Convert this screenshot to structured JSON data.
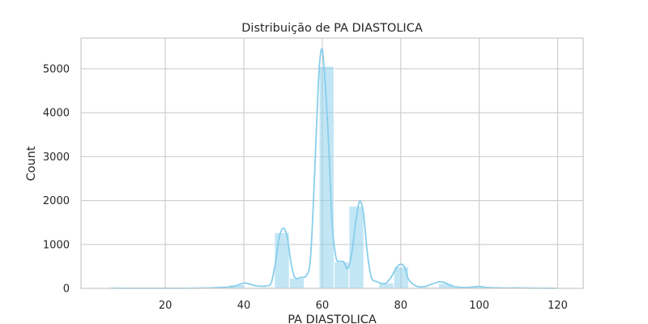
{
  "chart_data": {
    "type": "bar",
    "title": "Distribuição de PA DIASTOLICA",
    "xlabel": "PA DIASTOLICA",
    "ylabel": "Count",
    "xlim": [
      -1.5,
      126.5
    ],
    "ylim": [
      0,
      5700
    ],
    "xticks": [
      20,
      40,
      60,
      80,
      100,
      120
    ],
    "yticks": [
      0,
      1000,
      2000,
      3000,
      4000,
      5000
    ],
    "grid": true,
    "color": "#87ceeb",
    "bins": [
      {
        "x0": 6.0,
        "x1": 9.8,
        "count": 8
      },
      {
        "x0": 9.8,
        "x1": 13.6,
        "count": 3
      },
      {
        "x0": 13.6,
        "x1": 17.4,
        "count": 3
      },
      {
        "x0": 17.4,
        "x1": 21.2,
        "count": 5
      },
      {
        "x0": 21.2,
        "x1": 25.0,
        "count": 3
      },
      {
        "x0": 25.0,
        "x1": 28.8,
        "count": 3
      },
      {
        "x0": 28.8,
        "x1": 32.6,
        "count": 6
      },
      {
        "x0": 32.6,
        "x1": 36.4,
        "count": 10
      },
      {
        "x0": 36.4,
        "x1": 40.2,
        "count": 80
      },
      {
        "x0": 40.2,
        "x1": 44.0,
        "count": 25
      },
      {
        "x0": 44.0,
        "x1": 47.8,
        "count": 30
      },
      {
        "x0": 47.8,
        "x1": 51.6,
        "count": 1270
      },
      {
        "x0": 51.6,
        "x1": 55.4,
        "count": 230
      },
      {
        "x0": 55.4,
        "x1": 59.2,
        "count": 20
      },
      {
        "x0": 59.2,
        "x1": 63.0,
        "count": 5060
      },
      {
        "x0": 63.0,
        "x1": 66.8,
        "count": 600
      },
      {
        "x0": 66.8,
        "x1": 70.6,
        "count": 1870
      },
      {
        "x0": 70.6,
        "x1": 74.4,
        "count": 20
      },
      {
        "x0": 74.4,
        "x1": 78.2,
        "count": 120
      },
      {
        "x0": 78.2,
        "x1": 82.0,
        "count": 490
      },
      {
        "x0": 82.0,
        "x1": 85.8,
        "count": 20
      },
      {
        "x0": 85.8,
        "x1": 89.6,
        "count": 30
      },
      {
        "x0": 89.6,
        "x1": 93.4,
        "count": 110
      },
      {
        "x0": 93.4,
        "x1": 97.2,
        "count": 10
      },
      {
        "x0": 97.2,
        "x1": 101.0,
        "count": 25
      },
      {
        "x0": 101.0,
        "x1": 104.8,
        "count": 8
      },
      {
        "x0": 104.8,
        "x1": 108.6,
        "count": 5
      },
      {
        "x0": 108.6,
        "x1": 112.4,
        "count": 8
      },
      {
        "x0": 112.4,
        "x1": 116.2,
        "count": 3
      },
      {
        "x0": 116.2,
        "x1": 120.0,
        "count": 5
      }
    ],
    "kde": [
      {
        "x": 6,
        "y": 4
      },
      {
        "x": 10,
        "y": 3
      },
      {
        "x": 15,
        "y": 3
      },
      {
        "x": 20,
        "y": 3
      },
      {
        "x": 25,
        "y": 3
      },
      {
        "x": 30,
        "y": 8
      },
      {
        "x": 34,
        "y": 20
      },
      {
        "x": 37,
        "y": 40
      },
      {
        "x": 39,
        "y": 90
      },
      {
        "x": 40,
        "y": 120
      },
      {
        "x": 41,
        "y": 110
      },
      {
        "x": 42.5,
        "y": 70
      },
      {
        "x": 44,
        "y": 50
      },
      {
        "x": 46,
        "y": 60
      },
      {
        "x": 47,
        "y": 130
      },
      {
        "x": 48,
        "y": 550
      },
      {
        "x": 49,
        "y": 1150
      },
      {
        "x": 50,
        "y": 1370
      },
      {
        "x": 51,
        "y": 1200
      },
      {
        "x": 52,
        "y": 600
      },
      {
        "x": 53,
        "y": 250
      },
      {
        "x": 54.5,
        "y": 250
      },
      {
        "x": 56,
        "y": 300
      },
      {
        "x": 57,
        "y": 700
      },
      {
        "x": 58,
        "y": 2500
      },
      {
        "x": 59,
        "y": 4700
      },
      {
        "x": 59.8,
        "y": 5450
      },
      {
        "x": 60.5,
        "y": 5000
      },
      {
        "x": 61.5,
        "y": 3500
      },
      {
        "x": 62.5,
        "y": 1500
      },
      {
        "x": 63.5,
        "y": 700
      },
      {
        "x": 64.5,
        "y": 620
      },
      {
        "x": 65.5,
        "y": 600
      },
      {
        "x": 66.5,
        "y": 450
      },
      {
        "x": 67.5,
        "y": 800
      },
      {
        "x": 68.5,
        "y": 1500
      },
      {
        "x": 69.5,
        "y": 1980
      },
      {
        "x": 70.5,
        "y": 1700
      },
      {
        "x": 71.5,
        "y": 800
      },
      {
        "x": 72.5,
        "y": 250
      },
      {
        "x": 74,
        "y": 150
      },
      {
        "x": 76,
        "y": 110
      },
      {
        "x": 77.5,
        "y": 250
      },
      {
        "x": 79,
        "y": 480
      },
      {
        "x": 80,
        "y": 550
      },
      {
        "x": 81,
        "y": 480
      },
      {
        "x": 82,
        "y": 200
      },
      {
        "x": 84,
        "y": 50
      },
      {
        "x": 86,
        "y": 40
      },
      {
        "x": 88,
        "y": 100
      },
      {
        "x": 90,
        "y": 150
      },
      {
        "x": 91.5,
        "y": 120
      },
      {
        "x": 93,
        "y": 50
      },
      {
        "x": 96,
        "y": 20
      },
      {
        "x": 100,
        "y": 40
      },
      {
        "x": 102,
        "y": 20
      },
      {
        "x": 106,
        "y": 8
      },
      {
        "x": 110,
        "y": 10
      },
      {
        "x": 115,
        "y": 4
      },
      {
        "x": 120,
        "y": 3
      }
    ]
  }
}
